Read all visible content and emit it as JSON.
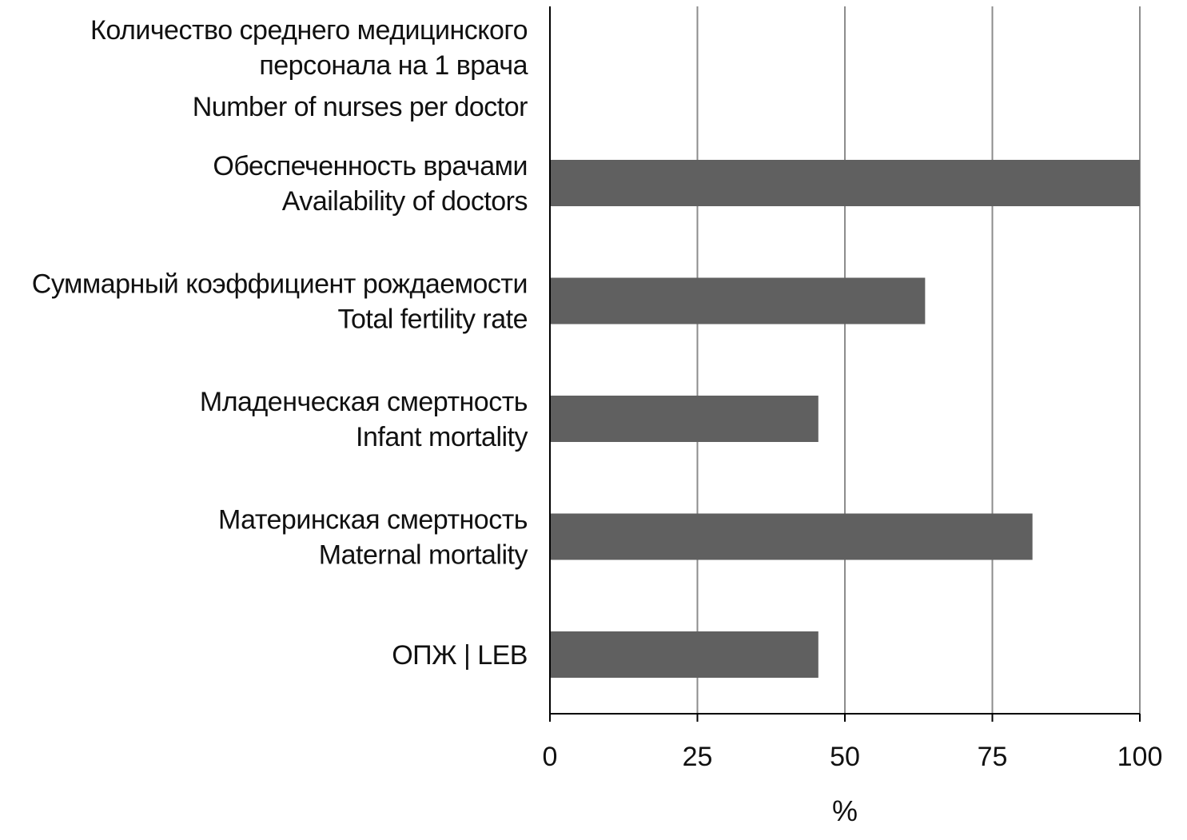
{
  "chart_data": {
    "type": "bar",
    "orientation": "horizontal",
    "categories": [
      {
        "lines": [
          "Количество среднего медицинского",
          "персонала на 1 врача",
          "Number of nurses per doctor"
        ]
      },
      {
        "lines": [
          "Обеспеченность врачами",
          "Availability of doctors"
        ]
      },
      {
        "lines": [
          "Суммарный коэффициент рождаемости",
          "Total fertility rate"
        ]
      },
      {
        "lines": [
          "Младенческая смертность",
          "Infant mortality"
        ]
      },
      {
        "lines": [
          "Материнская смертность",
          "Maternal mortality"
        ]
      },
      {
        "lines": [
          "ОПЖ | LEB"
        ]
      }
    ],
    "values": [
      0,
      100,
      63.6,
      45.5,
      81.8,
      45.5
    ],
    "xlabel": "%",
    "xlim": [
      0,
      100
    ],
    "xticks": [
      "0",
      "25",
      "50",
      "75",
      "100"
    ],
    "grid": "vertical",
    "bar_color": "#606060",
    "grid_color": "#8c8c8c",
    "axis_color": "#000000"
  }
}
